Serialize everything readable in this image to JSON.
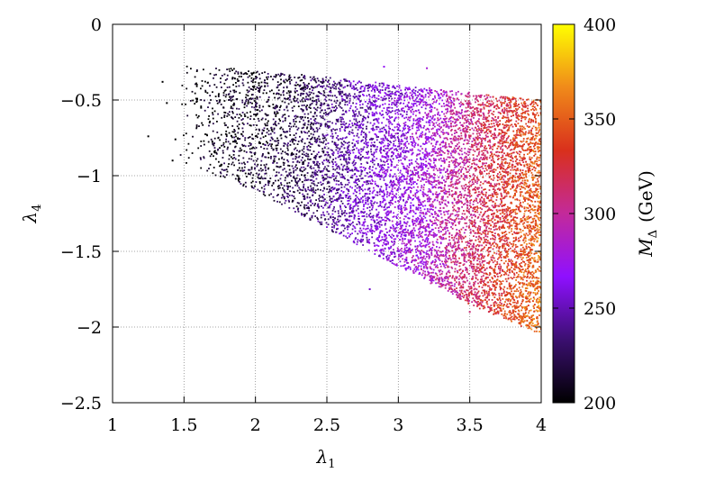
{
  "chart_data": {
    "type": "scatter",
    "title": "",
    "xlabel": "λ1",
    "ylabel": "λ4",
    "colorbar_label": "M_Δ (GeV)",
    "xlim": [
      1,
      4
    ],
    "ylim": [
      -2.5,
      0
    ],
    "x_ticks": [
      1,
      1.5,
      2,
      2.5,
      3,
      3.5,
      4
    ],
    "x_tick_labels": [
      "1",
      "1.5",
      "2",
      "2.5",
      "3",
      "3.5",
      "4"
    ],
    "y_ticks": [
      0,
      -0.5,
      -1,
      -1.5,
      -2,
      -2.5
    ],
    "y_tick_labels": [
      "0",
      "−0.5",
      "−1",
      "−1.5",
      "−2",
      "−2.5"
    ],
    "color_range": [
      200,
      400
    ],
    "colorbar_ticks": [
      200,
      250,
      300,
      350,
      400
    ],
    "colorbar_tick_labels": [
      "200",
      "250",
      "300",
      "350",
      "400"
    ],
    "colormap": [
      "#000000",
      "#3b0f70",
      "#8f10ff",
      "#c32a9a",
      "#d9301c",
      "#f08a1a",
      "#ffff00"
    ],
    "grid": true,
    "legend": "none",
    "point_density": 9000,
    "region": {
      "x_range": [
        1.25,
        4.0
      ],
      "y_upper_edge": [
        [
          1.45,
          -0.27
        ],
        [
          2.0,
          -0.3
        ],
        [
          2.5,
          -0.35
        ],
        [
          3.0,
          -0.4
        ],
        [
          3.5,
          -0.45
        ],
        [
          4.0,
          -0.5
        ]
      ],
      "y_lower_edge": [
        [
          1.45,
          -0.9
        ],
        [
          2.0,
          -1.1
        ],
        [
          2.5,
          -1.35
        ],
        [
          3.0,
          -1.6
        ],
        [
          3.5,
          -1.85
        ],
        [
          4.0,
          -2.05
        ]
      ]
    },
    "mass_vs_lambda1": [
      [
        1.5,
        200
      ],
      [
        2.3,
        220
      ],
      [
        2.7,
        250
      ],
      [
        3.2,
        280
      ],
      [
        3.6,
        320
      ],
      [
        4.0,
        355
      ]
    ],
    "sparse_points": [
      {
        "x": 1.25,
        "y": -0.74,
        "mass": 200
      },
      {
        "x": 1.35,
        "y": -0.38,
        "mass": 200
      },
      {
        "x": 1.42,
        "y": -0.9,
        "mass": 200
      },
      {
        "x": 1.44,
        "y": -0.76,
        "mass": 200
      },
      {
        "x": 1.38,
        "y": -0.52,
        "mass": 200
      },
      {
        "x": 3.2,
        "y": -0.29,
        "mass": 280
      },
      {
        "x": 2.9,
        "y": -0.28,
        "mass": 270
      },
      {
        "x": 2.8,
        "y": -1.75,
        "mass": 255
      },
      {
        "x": 3.5,
        "y": -1.9,
        "mass": 310
      }
    ]
  }
}
